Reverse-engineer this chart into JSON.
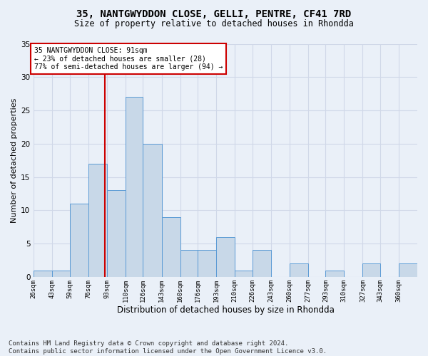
{
  "title_line1": "35, NANTGWYDDON CLOSE, GELLI, PENTRE, CF41 7RD",
  "title_line2": "Size of property relative to detached houses in Rhondda",
  "xlabel": "Distribution of detached houses by size in Rhondda",
  "ylabel": "Number of detached properties",
  "footer": "Contains HM Land Registry data © Crown copyright and database right 2024.\nContains public sector information licensed under the Open Government Licence v3.0.",
  "bin_labels": [
    "26sqm",
    "43sqm",
    "59sqm",
    "76sqm",
    "93sqm",
    "110sqm",
    "126sqm",
    "143sqm",
    "160sqm",
    "176sqm",
    "193sqm",
    "210sqm",
    "226sqm",
    "243sqm",
    "260sqm",
    "277sqm",
    "293sqm",
    "310sqm",
    "327sqm",
    "343sqm",
    "360sqm"
  ],
  "bin_edges": [
    26,
    43,
    59,
    76,
    93,
    110,
    126,
    143,
    160,
    176,
    193,
    210,
    226,
    243,
    260,
    277,
    293,
    310,
    327,
    343,
    360,
    377
  ],
  "counts": [
    1,
    1,
    11,
    17,
    13,
    27,
    20,
    9,
    4,
    4,
    6,
    1,
    4,
    0,
    2,
    0,
    1,
    0,
    2,
    0,
    2
  ],
  "bar_color": "#c8d8e8",
  "bar_edge_color": "#5b9bd5",
  "grid_color": "#d0d8e8",
  "property_value": 91,
  "vline_color": "#cc0000",
  "annotation_text": "35 NANTGWYDDON CLOSE: 91sqm\n← 23% of detached houses are smaller (28)\n77% of semi-detached houses are larger (94) →",
  "annotation_box_color": "#ffffff",
  "annotation_box_edge": "#cc0000",
  "ylim": [
    0,
    35
  ],
  "yticks": [
    0,
    5,
    10,
    15,
    20,
    25,
    30,
    35
  ],
  "background_color": "#eaf0f8",
  "title_fontsize": 10,
  "subtitle_fontsize": 8.5,
  "ylabel_fontsize": 8,
  "xlabel_fontsize": 8.5,
  "footer_fontsize": 6.5
}
